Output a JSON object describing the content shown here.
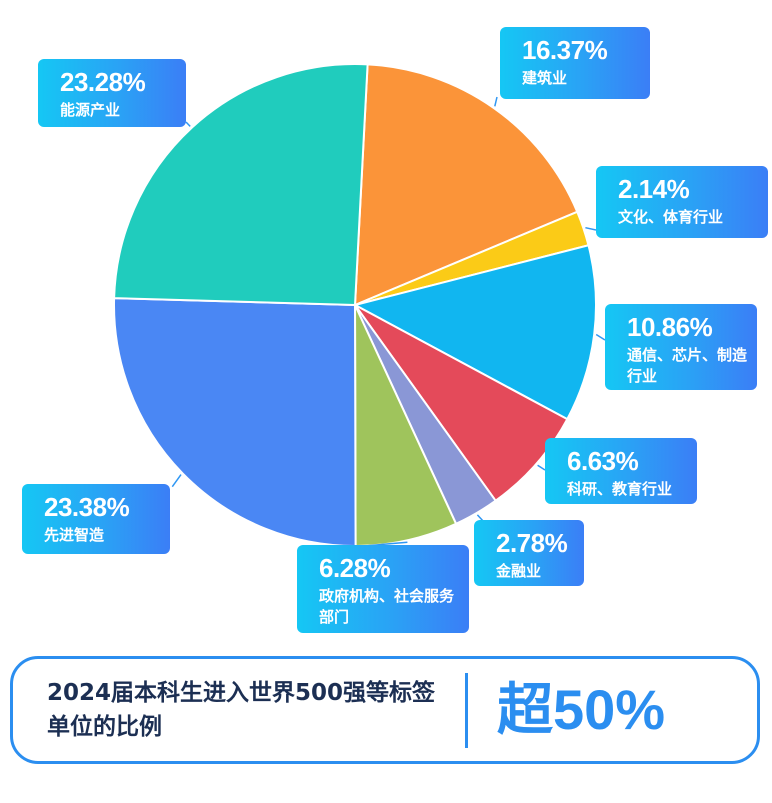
{
  "chart_data": {
    "type": "pie",
    "title": "",
    "slices": [
      {
        "label": "建筑业",
        "value": 16.37,
        "display": "16.37%",
        "color": "#fb9439"
      },
      {
        "label": "文化、体育行业",
        "value": 2.14,
        "display": "2.14%",
        "color": "#fbcb17"
      },
      {
        "label": "通信、芯片、制造行业",
        "value": 10.86,
        "display": "10.86%",
        "color": "#11b6f0"
      },
      {
        "label": "科研、教育行业",
        "value": 6.63,
        "display": "6.63%",
        "color": "#e44a5a"
      },
      {
        "label": "金融业",
        "value": 2.78,
        "display": "2.78%",
        "color": "#8a97d6"
      },
      {
        "label": "政府机构、社会服务部门",
        "value": 6.28,
        "display": "6.28%",
        "color": "#9fc45c"
      },
      {
        "label": "先进智造",
        "value": 23.38,
        "display": "23.38%",
        "color": "#4a87f4"
      },
      {
        "label": "能源产业",
        "value": 23.28,
        "display": "23.28%",
        "color": "#20ccbd"
      }
    ]
  },
  "labels": {
    "construction": {
      "pct": "16.37%",
      "name": "建筑业"
    },
    "culture_sports": {
      "pct": "2.14%",
      "name": "文化、体育行业"
    },
    "telecom_chip": {
      "pct": "10.86%",
      "name": "通信、芯片、制造行业"
    },
    "research_edu": {
      "pct": "6.63%",
      "name": "科研、教育行业"
    },
    "finance": {
      "pct": "2.78%",
      "name": "金融业"
    },
    "government": {
      "pct": "6.28%",
      "name": "政府机构、社会服务部门"
    },
    "smart_manufacturing": {
      "pct": "23.38%",
      "name": "先进智造"
    },
    "energy": {
      "pct": "23.28%",
      "name": "能源产业"
    }
  },
  "summary": {
    "caption": "2024届本科生进入世界500强等标签单位的比例",
    "highlight": "超50%"
  },
  "colors": {
    "accent": "#2b8ef0",
    "caption_text": "#1c2f53",
    "label_gradient_start": "#15c7f4",
    "label_gradient_end": "#3b7ef6"
  }
}
